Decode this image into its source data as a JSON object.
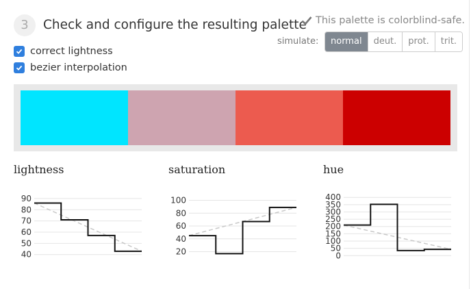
{
  "step": {
    "number": "3",
    "title": "Check and configure the resulting palette"
  },
  "options": [
    {
      "label": "correct lightness",
      "checked": true
    },
    {
      "label": "bezier interpolation",
      "checked": true
    }
  ],
  "status": {
    "text": "This palette is colorblind-safe.",
    "icon": "checkmark-icon"
  },
  "simulate": {
    "label": "simulate:",
    "buttons": [
      "normal",
      "deut.",
      "prot.",
      "trit."
    ],
    "active": "normal"
  },
  "palette": {
    "colors": [
      "#00e5ff",
      "#cea4b0",
      "#ec5b4f",
      "#cc0000"
    ]
  },
  "chart_data": [
    {
      "type": "line",
      "title": "lightness",
      "yticks": [
        40,
        50,
        60,
        70,
        80,
        90
      ],
      "ylim": [
        38,
        93
      ],
      "steps": [
        86,
        71,
        57,
        43
      ],
      "trend": [
        86,
        43
      ]
    },
    {
      "type": "line",
      "title": "saturation",
      "yticks": [
        20,
        40,
        60,
        80,
        100
      ],
      "ylim": [
        12,
        108
      ],
      "steps": [
        45,
        17,
        67,
        89
      ],
      "trend": [
        45,
        89
      ]
    },
    {
      "type": "line",
      "title": "hue",
      "yticks": [
        0,
        50,
        100,
        150,
        200,
        250,
        300,
        350,
        400
      ],
      "ylim": [
        -8,
        415
      ],
      "steps": [
        210,
        352,
        35,
        43
      ],
      "trend": [
        210,
        43
      ]
    }
  ]
}
